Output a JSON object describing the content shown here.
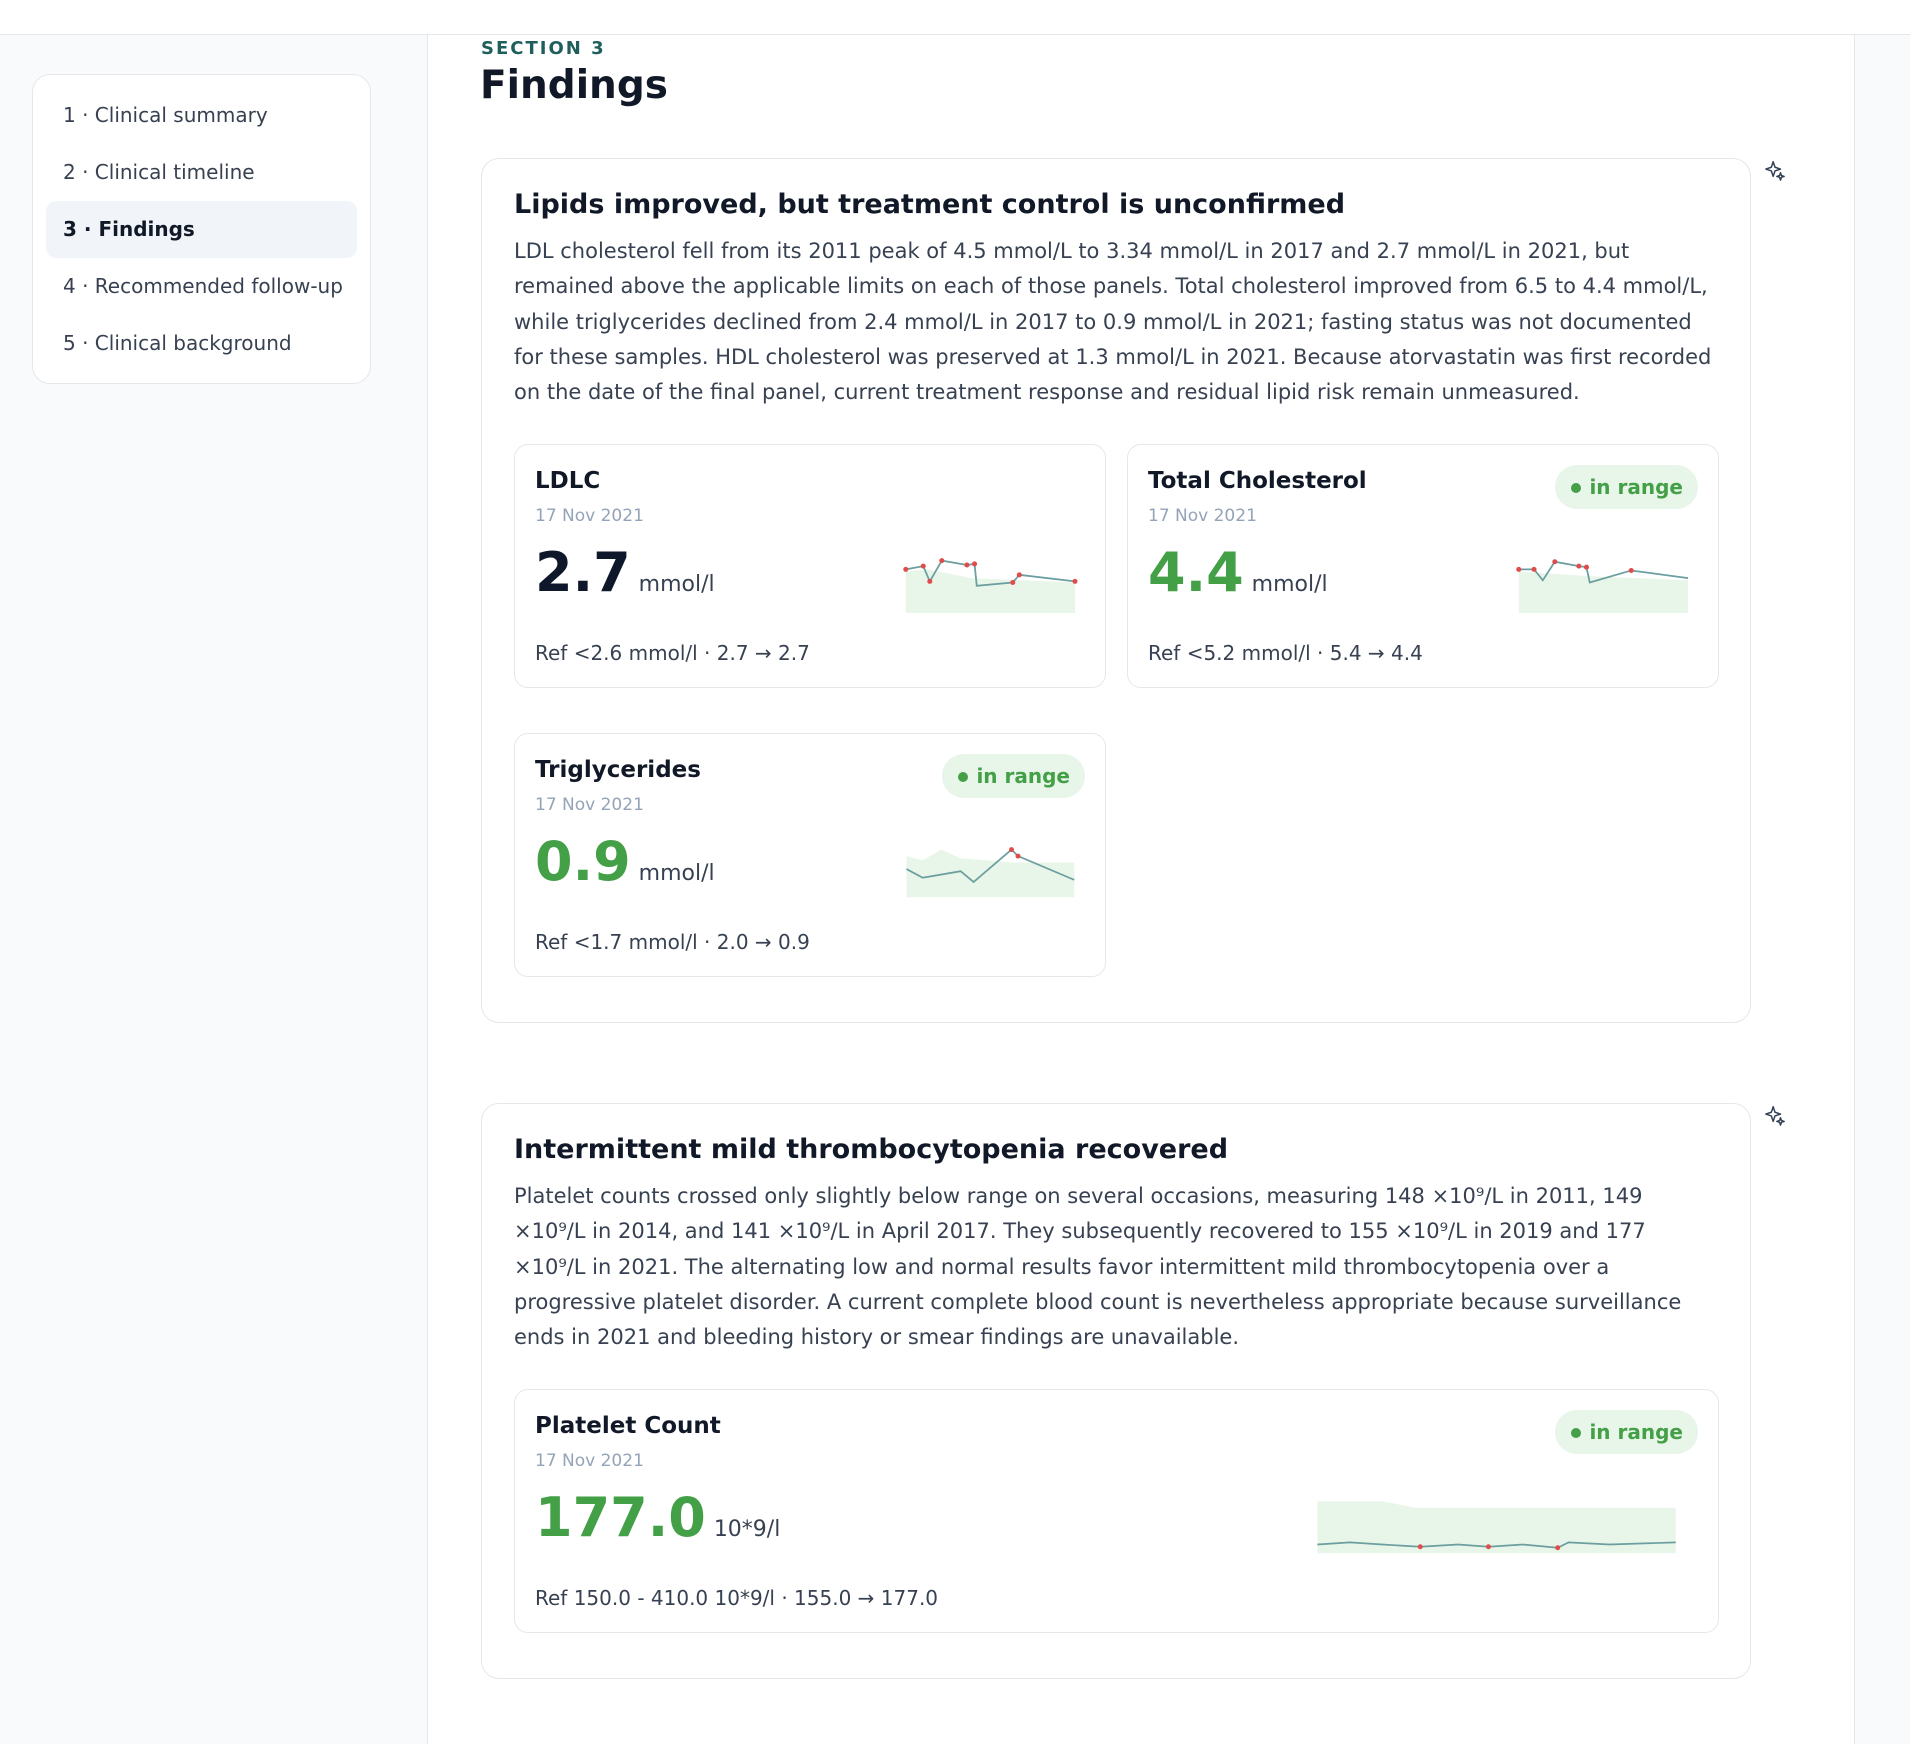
{
  "nav": {
    "items": [
      "1 · Clinical summary",
      "2 · Clinical timeline",
      "3 · Findings",
      "4 · Recommended follow-up",
      "5 · Clinical background"
    ]
  },
  "section": {
    "eyebrow": "SECTION 3",
    "title": "Findings"
  },
  "findings": [
    {
      "title": "Lipids improved, but treatment control is unconfirmed",
      "body": "LDL cholesterol fell from its 2011 peak of 4.5 mmol/L to 3.34 mmol/L in 2017 and 2.7 mmol/L in 2021, but remained above the applicable limits on each of those panels. Total cholesterol improved from 6.5 to 4.4 mmol/L, while triglycerides declined from 2.4 mmol/L in 2017 to 0.9 mmol/L in 2021; fasting status was not documented for these samples. HDL cholesterol was preserved at 1.3 mmol/L in 2021. Because atorvastatin was first recorded on the date of the final panel, current treatment response and residual lipid risk remain unmeasured.",
      "cards": [
        {
          "name": "LDLC",
          "date": "17 Nov 2021",
          "value": "2.7",
          "unit": "mmol/l",
          "ref": "Ref <2.6 mmol/l · 2.7 → 2.7"
        },
        {
          "name": "Total Cholesterol",
          "status": "in range",
          "date": "17 Nov 2021",
          "value": "4.4",
          "unit": "mmol/l",
          "ref": "Ref <5.2 mmol/l · 5.4 → 4.4"
        },
        {
          "name": "Triglycerides",
          "status": "in range",
          "date": "17 Nov 2021",
          "value": "0.9",
          "unit": "mmol/l",
          "ref": "Ref <1.7 mmol/l · 2.0 → 0.9"
        }
      ]
    },
    {
      "title": "Intermittent mild thrombocytopenia recovered",
      "body": "Platelet counts crossed only slightly below range on several occasions, measuring 148 ×10⁹/L in 2011, 149 ×10⁹/L in 2014, and 141 ×10⁹/L in April 2017. They subsequently recovered to 155 ×10⁹/L in 2019 and 177 ×10⁹/L in 2021. The alternating low and normal results favor intermittent mild thrombocytopenia over a progressive platelet disorder. A current complete blood count is nevertheless appropriate because surveillance ends in 2021 and bleeding history or smear findings are unavailable.",
      "cards": [
        {
          "name": "Platelet Count",
          "status": "in range",
          "date": "17 Nov 2021",
          "value": "177.0",
          "unit": "10*9/l",
          "ref": "Ref 150.0 - 410.0 10*9/l · 155.0 → 177.0"
        }
      ]
    }
  ]
}
